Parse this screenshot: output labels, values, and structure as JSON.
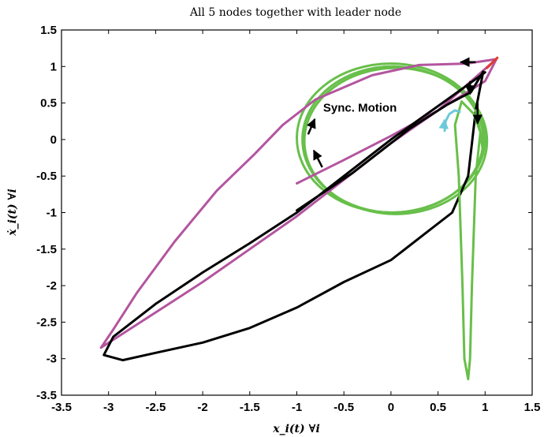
{
  "chart_data": {
    "type": "line",
    "title": "All 5 nodes together with leader node",
    "xlabel": "x_i(t) ∀i",
    "ylabel": "ẋ_i(t) ∀i",
    "xlim": [
      -3.5,
      1.5
    ],
    "ylim": [
      -3.5,
      1.5
    ],
    "xticks": [
      -3.5,
      -3,
      -2.5,
      -2,
      -1.5,
      -1,
      -0.5,
      0,
      0.5,
      1,
      1.5
    ],
    "xtick_labels": [
      "-3.5",
      "-3",
      "-2.5",
      "-2",
      "-1.5",
      "-1",
      "-0.5",
      "0",
      "0.5",
      "1",
      "1.5"
    ],
    "yticks": [
      -3.5,
      -3,
      -2.5,
      -2,
      -1.5,
      -1,
      -0.5,
      0,
      0.5,
      1,
      1.5
    ],
    "ytick_labels": [
      "-3.5",
      "-3",
      "-2.5",
      "-2",
      "-1.5",
      "-1",
      "-0.5",
      "0",
      "0.5",
      "1",
      "1.5"
    ],
    "grid": false,
    "annotations": [
      {
        "text": "Sync. Motion",
        "x": -0.72,
        "y": 0.38
      }
    ],
    "series": [
      {
        "color": "#b3559f",
        "points": [
          [
            -1.0,
            -0.6
          ],
          [
            -0.5,
            -0.28
          ],
          [
            0,
            0.05
          ],
          [
            0.5,
            0.4
          ],
          [
            1.0,
            0.8
          ],
          [
            1.12,
            1.1
          ],
          [
            0.8,
            1.04
          ],
          [
            0.3,
            1.02
          ],
          [
            -0.2,
            0.88
          ],
          [
            -0.8,
            0.55
          ],
          [
            -1.15,
            0.2
          ],
          [
            -1.45,
            -0.2
          ],
          [
            -1.85,
            -0.7
          ],
          [
            -2.3,
            -1.4
          ],
          [
            -2.7,
            -2.1
          ],
          [
            -2.95,
            -2.6
          ],
          [
            -3.08,
            -2.85
          ],
          [
            -2.6,
            -2.45
          ],
          [
            -2.0,
            -1.95
          ],
          [
            -1.5,
            -1.5
          ],
          [
            -1.0,
            -1.05
          ],
          [
            -0.5,
            -0.55
          ],
          [
            0,
            -0.05
          ],
          [
            0.5,
            0.4
          ],
          [
            1.1,
            1.08
          ]
        ]
      },
      {
        "color": "#000000",
        "points": [
          [
            -1.0,
            -0.97
          ],
          [
            -0.4,
            -0.45
          ],
          [
            0.2,
            0.15
          ],
          [
            0.6,
            0.48
          ],
          [
            0.85,
            0.65
          ],
          [
            0.98,
            0.93
          ],
          [
            0.9,
            0.4
          ],
          [
            0.82,
            -0.5
          ],
          [
            0.65,
            -1.0
          ],
          [
            0.4,
            -1.25
          ],
          [
            0,
            -1.65
          ],
          [
            -0.5,
            -1.95
          ],
          [
            -1.0,
            -2.3
          ],
          [
            -1.5,
            -2.58
          ],
          [
            -2.0,
            -2.78
          ],
          [
            -2.5,
            -2.92
          ],
          [
            -2.85,
            -3.02
          ],
          [
            -3.05,
            -2.95
          ],
          [
            -2.95,
            -2.7
          ],
          [
            -2.5,
            -2.25
          ],
          [
            -2.0,
            -1.82
          ],
          [
            -1.5,
            -1.42
          ],
          [
            -1.0,
            -1.0
          ],
          [
            -0.5,
            -0.5
          ],
          [
            0,
            0
          ],
          [
            0.6,
            0.55
          ],
          [
            1.0,
            0.92
          ]
        ]
      },
      {
        "color": "#68bf4a",
        "points": [
          [
            0.9,
            0.4
          ],
          [
            0.95,
            0.1
          ],
          [
            0.9,
            -0.5
          ],
          [
            0.86,
            -2.0
          ],
          [
            0.84,
            -3.0
          ],
          [
            0.82,
            -3.28
          ],
          [
            0.78,
            -3.0
          ],
          [
            0.76,
            -2.0
          ],
          [
            0.72,
            -0.5
          ],
          [
            0.68,
            0.2
          ],
          [
            0.75,
            0.52
          ],
          [
            0.88,
            0.35
          ],
          [
            0.95,
            0.1
          ],
          [
            0.98,
            -0.2
          ]
        ]
      },
      {
        "color": "#6cc9d9",
        "points": [
          [
            0.57,
            0.12
          ],
          [
            0.58,
            0.25
          ],
          [
            0.62,
            0.35
          ],
          [
            0.68,
            0.4
          ],
          [
            0.73,
            0.38
          ]
        ]
      },
      {
        "color": "#e23d2b",
        "points": [
          [
            1.02,
            0.98
          ],
          [
            1.13,
            1.12
          ]
        ]
      }
    ],
    "ellipses": [
      {
        "color": "#68bf4a",
        "cx": 0.0,
        "cy": 0.02,
        "rx": 1.0,
        "ry": 1.02
      },
      {
        "color": "#68bf4a",
        "cx": 0.02,
        "cy": 0.0,
        "rx": 0.96,
        "ry": 1.0
      },
      {
        "color": "#68bf4a",
        "cx": 0.05,
        "cy": -0.02,
        "rx": 0.97,
        "ry": 1.0
      }
    ],
    "arrows": [
      {
        "from": [
          0.92,
          0.5
        ],
        "to": [
          0.92,
          0.22
        ],
        "color": "#000000"
      },
      {
        "from": [
          0.84,
          0.8
        ],
        "to": [
          0.84,
          0.62
        ],
        "color": "#000000"
      },
      {
        "from": [
          0.9,
          1.06
        ],
        "to": [
          0.74,
          1.06
        ],
        "color": "#000000"
      },
      {
        "from": [
          -0.88,
          0.07
        ],
        "to": [
          -0.81,
          0.28
        ],
        "color": "#000000"
      },
      {
        "from": [
          -0.73,
          -0.38
        ],
        "to": [
          -0.82,
          -0.15
        ],
        "color": "#000000"
      },
      {
        "from": [
          0.56,
          0.15
        ],
        "to": [
          0.57,
          0.27
        ],
        "color": "#6cc9d9"
      }
    ]
  }
}
